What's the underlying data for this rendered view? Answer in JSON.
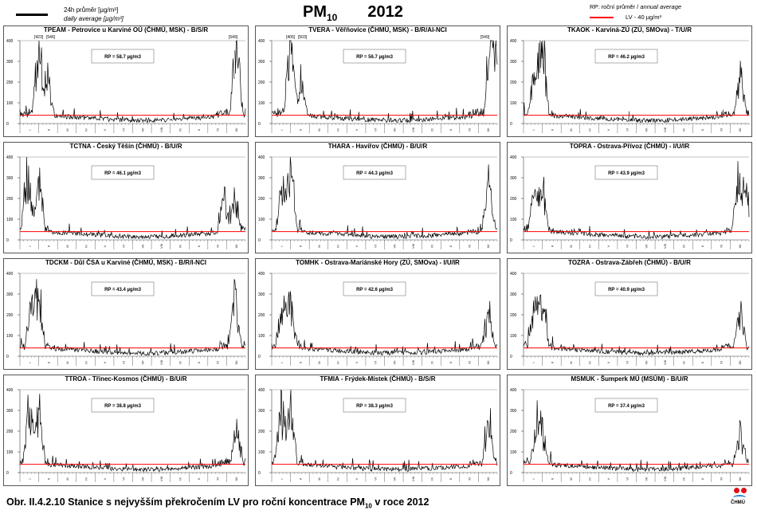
{
  "header": {
    "legend_daily_cz": "24h průměr [µg/m³]",
    "legend_daily_en": "daily average [µg/m³]",
    "title_main": "PM",
    "title_sub": "10",
    "title_year": "2012",
    "legend_rp_cz": "RP: roční průměr / ",
    "legend_rp_en": "annual average",
    "legend_lv": "LV - 40 µg/m³",
    "lv_color": "#ff0000",
    "series_color": "#000000"
  },
  "caption": {
    "text_before": "Obr. II.4.2.10  Stanice s nejvyšším překročením LV pro roční koncentrace PM",
    "text_sub": "10",
    "text_after": " v roce 2012"
  },
  "logo": {
    "text": "ČHMÚ"
  },
  "chart_data": [
    {
      "type": "line",
      "title": "TPEAM - Petrovice u Karviné OÚ (ČHMÚ, MSK) - B/S/R",
      "rp_label": "RP = 58.7 µg/m3",
      "annotations": [
        "[423]",
        "[546]",
        "[549]"
      ],
      "peaks": [
        [
          1,
          380
        ],
        [
          1.5,
          200
        ],
        [
          11.5,
          400
        ]
      ],
      "ylim": [
        0,
        400
      ],
      "yticks": [
        "0",
        "100",
        "200",
        "300",
        "400"
      ],
      "xticks": [
        "I",
        "II",
        "III",
        "IV",
        "V",
        "VI",
        "VII",
        "VIII",
        "IX",
        "X",
        "XI",
        "XII"
      ],
      "limit_value": 40,
      "gaps": true
    },
    {
      "type": "line",
      "title": "TVERA - Věřňovice (ČHMÚ, MSK) - B/R/AI-NCI",
      "rp_label": "RP = 56.7 µg/m3",
      "annotations": [
        "[405]",
        "[503]",
        "[549]"
      ],
      "peaks": [
        [
          1,
          400
        ],
        [
          1.6,
          180
        ],
        [
          11.6,
          400
        ],
        [
          11.9,
          300
        ]
      ],
      "ylim": [
        0,
        400
      ],
      "yticks": [
        "0",
        "100",
        "200",
        "300",
        "400"
      ],
      "xticks": [
        "I",
        "II",
        "III",
        "IV",
        "V",
        "VI",
        "VII",
        "VIII",
        "IX",
        "X",
        "XI",
        "XII"
      ],
      "limit_value": 40,
      "gaps": false
    },
    {
      "type": "line",
      "title": "TKAOK - Karviná-ZÚ (ZÚ, SMOva) - T/U/R",
      "rp_label": "RP = 46.2 µg/m3",
      "annotations": [],
      "peaks": [
        [
          1,
          360
        ],
        [
          0.6,
          220
        ],
        [
          11.5,
          190
        ]
      ],
      "ylim": [
        0,
        400
      ],
      "yticks": [
        "0",
        "100",
        "200",
        "300",
        "400"
      ],
      "xticks": [
        "I",
        "II",
        "III",
        "IV",
        "V",
        "VI",
        "VII",
        "VIII",
        "IX",
        "X",
        "XI",
        "XII"
      ],
      "limit_value": 40,
      "gaps": true
    },
    {
      "type": "line",
      "title": "TCTNA - Český Těšín (ČHMÚ) - B/U/R",
      "rp_label": "RP = 46.1 µg/m3",
      "annotations": [],
      "peaks": [
        [
          0.4,
          310
        ],
        [
          1.0,
          300
        ],
        [
          10.8,
          190
        ],
        [
          11.4,
          170
        ]
      ],
      "ylim": [
        0,
        400
      ],
      "yticks": [
        "0",
        "100",
        "200",
        "300",
        "400"
      ],
      "xticks": [
        "I",
        "II",
        "III",
        "IV",
        "V",
        "VI",
        "VII",
        "VIII",
        "IX",
        "X",
        "XI",
        "XII"
      ],
      "limit_value": 40,
      "gaps": false
    },
    {
      "type": "line",
      "title": "THARA - Havířov (ČHMÚ) - B/U/R",
      "rp_label": "RP = 44.3 µg/m3",
      "annotations": [],
      "peaks": [
        [
          1,
          350
        ],
        [
          0.6,
          250
        ],
        [
          11.5,
          250
        ]
      ],
      "ylim": [
        0,
        400
      ],
      "yticks": [
        "0",
        "100",
        "200",
        "300",
        "400"
      ],
      "xticks": [
        "I",
        "II",
        "III",
        "IV",
        "V",
        "VI",
        "VII",
        "VIII",
        "IX",
        "X",
        "XI",
        "XII"
      ],
      "limit_value": 40,
      "gaps": false
    },
    {
      "type": "line",
      "title": "TOPRA - Ostrava-Přívoz (ČHMÚ) - I/U/IR",
      "rp_label": "RP = 43.9 µg/m3",
      "annotations": [],
      "peaks": [
        [
          0.6,
          240
        ],
        [
          1,
          220
        ],
        [
          11.4,
          250
        ],
        [
          11.8,
          220
        ]
      ],
      "ylim": [
        0,
        400
      ],
      "yticks": [
        "0",
        "100",
        "200",
        "300",
        "400"
      ],
      "xticks": [
        "I",
        "II",
        "III",
        "IV",
        "V",
        "VI",
        "VII",
        "VIII",
        "IX",
        "X",
        "XI",
        "XII"
      ],
      "limit_value": 40,
      "gaps": false
    },
    {
      "type": "line",
      "title": "TDCKM - Důl ČSA u Karviné (ČHMÚ, MSK) - B/R/I-NCI",
      "rp_label": "RP = 43.4 µg/m3",
      "annotations": [],
      "peaks": [
        [
          1,
          310
        ],
        [
          0.6,
          200
        ],
        [
          11.4,
          270
        ]
      ],
      "ylim": [
        0,
        400
      ],
      "yticks": [
        "0",
        "100",
        "200",
        "300",
        "400"
      ],
      "xticks": [
        "I",
        "II",
        "III",
        "IV",
        "V",
        "VI",
        "VII",
        "VIII",
        "IX",
        "X",
        "XI",
        "XII"
      ],
      "limit_value": 40,
      "gaps": true
    },
    {
      "type": "line",
      "title": "TOMHK - Ostrava-Mariánské Hory (ZÚ, SMOva) - I/U/IR",
      "rp_label": "RP = 42.6 µg/m3",
      "annotations": [],
      "peaks": [
        [
          0.6,
          230
        ],
        [
          1,
          240
        ],
        [
          11.5,
          180
        ]
      ],
      "ylim": [
        0,
        400
      ],
      "yticks": [
        "0",
        "100",
        "200",
        "300",
        "400"
      ],
      "xticks": [
        "I",
        "II",
        "III",
        "IV",
        "V",
        "VI",
        "VII",
        "VIII",
        "IX",
        "X",
        "XI",
        "XII"
      ],
      "limit_value": 40,
      "gaps": false
    },
    {
      "type": "line",
      "title": "TOZRA - Ostrava-Zábřeh (ČHMÚ) - B/U/R",
      "rp_label": "RP = 40.9 µg/m3",
      "annotations": [],
      "peaks": [
        [
          0.6,
          250
        ],
        [
          1,
          270
        ],
        [
          11.5,
          190
        ]
      ],
      "ylim": [
        0,
        400
      ],
      "yticks": [
        "0",
        "100",
        "200",
        "300",
        "400"
      ],
      "xticks": [
        "I",
        "II",
        "III",
        "IV",
        "V",
        "VI",
        "VII",
        "VIII",
        "IX",
        "X",
        "XI",
        "XII"
      ],
      "limit_value": 40,
      "gaps": false
    },
    {
      "type": "line",
      "title": "TTROA - Třinec-Kosmos (ČHMÚ) - B/U/R",
      "rp_label": "RP = 38.8 µg/m3",
      "annotations": [],
      "peaks": [
        [
          0.5,
          300
        ],
        [
          1,
          290
        ],
        [
          11.5,
          170
        ]
      ],
      "ylim": [
        0,
        400
      ],
      "yticks": [
        "0",
        "100",
        "200",
        "300",
        "400"
      ],
      "xticks": [
        "I",
        "II",
        "III",
        "IV",
        "V",
        "VI",
        "VII",
        "VIII",
        "IX",
        "X",
        "XI",
        "XII"
      ],
      "limit_value": 40,
      "gaps": false
    },
    {
      "type": "line",
      "title": "TFMIA - Frýdek-Místek (ČHMÚ) - B/S/R",
      "rp_label": "RP = 38.3 µg/m3",
      "annotations": [],
      "peaks": [
        [
          0.5,
          260
        ],
        [
          1,
          310
        ],
        [
          11.5,
          200
        ]
      ],
      "ylim": [
        0,
        400
      ],
      "yticks": [
        "0",
        "100",
        "200",
        "300",
        "400"
      ],
      "xticks": [
        "I",
        "II",
        "III",
        "IV",
        "V",
        "VI",
        "VII",
        "VIII",
        "IX",
        "X",
        "XI",
        "XII"
      ],
      "limit_value": 40,
      "gaps": false
    },
    {
      "type": "line",
      "title": "MSMUK - Šumperk MÚ (MSÚM) - B/U/R",
      "rp_label": "RP = 37.4 µg/m3",
      "annotations": [],
      "peaks": [
        [
          0.7,
          160
        ],
        [
          1,
          150
        ],
        [
          11.5,
          150
        ]
      ],
      "ylim": [
        0,
        400
      ],
      "yticks": [
        "0",
        "100",
        "200",
        "300",
        "400"
      ],
      "xticks": [
        "I",
        "II",
        "III",
        "IV",
        "V",
        "VI",
        "VII",
        "VIII",
        "IX",
        "X",
        "XI",
        "XII"
      ],
      "limit_value": 40,
      "gaps": false
    }
  ]
}
